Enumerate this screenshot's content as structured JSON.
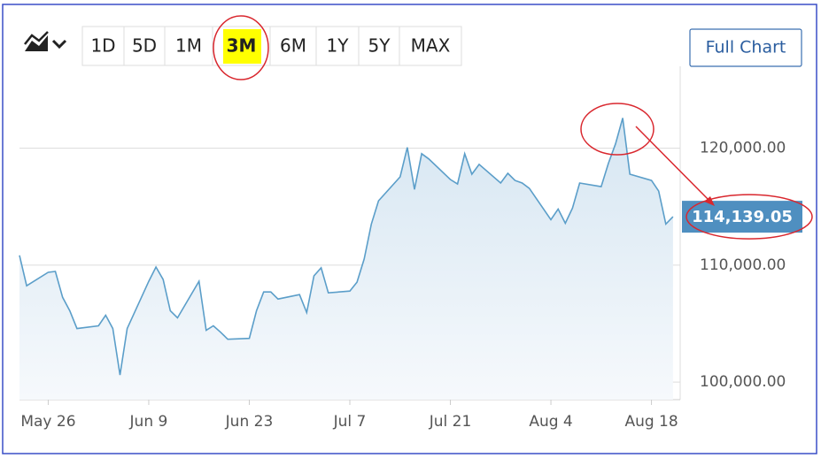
{
  "toolbar": {
    "ranges": [
      "1D",
      "5D",
      "1M",
      "3M",
      "6M",
      "1Y",
      "5Y",
      "MAX"
    ],
    "full_chart": "Full Chart"
  },
  "chart_data": {
    "type": "area",
    "color": "#5b9ec9",
    "x": [
      "May 22",
      "May 23",
      "May 26",
      "May 27",
      "May 28",
      "May 29",
      "May 30",
      "Jun 2",
      "Jun 3",
      "Jun 4",
      "Jun 5",
      "Jun 6",
      "Jun 9",
      "Jun 10",
      "Jun 11",
      "Jun 12",
      "Jun 13",
      "Jun 16",
      "Jun 17",
      "Jun 18",
      "Jun 19",
      "Jun 20",
      "Jun 23",
      "Jun 24",
      "Jun 25",
      "Jun 26",
      "Jun 27",
      "Jun 30",
      "Jul 1",
      "Jul 2",
      "Jul 3",
      "Jul 4",
      "Jul 7",
      "Jul 8",
      "Jul 9",
      "Jul 10",
      "Jul 11",
      "Jul 14",
      "Jul 15",
      "Jul 16",
      "Jul 17",
      "Jul 18",
      "Jul 21",
      "Jul 22",
      "Jul 23",
      "Jul 24",
      "Jul 25",
      "Jul 28",
      "Jul 29",
      "Jul 30",
      "Jul 31",
      "Aug 1",
      "Aug 4",
      "Aug 5",
      "Aug 6",
      "Aug 7",
      "Aug 8",
      "Aug 11",
      "Aug 12",
      "Aug 13",
      "Aug 14",
      "Aug 15",
      "Aug 18",
      "Aug 19",
      "Aug 20",
      "Aug 21"
    ],
    "values": [
      110835,
      108240,
      109385,
      109460,
      107250,
      106100,
      104580,
      104810,
      105720,
      104580,
      100610,
      104580,
      108620,
      109840,
      108770,
      106100,
      105490,
      108620,
      104430,
      104810,
      104270,
      103660,
      103740,
      106100,
      107710,
      107710,
      107100,
      107480,
      105950,
      109080,
      109770,
      107630,
      107780,
      108550,
      110530,
      113510,
      115500,
      117550,
      120070,
      116480,
      119530,
      119080,
      117320,
      116940,
      119530,
      117780,
      118620,
      117020,
      117850,
      117240,
      117020,
      116560,
      113890,
      114800,
      113580,
      114880,
      117020,
      116710,
      118690,
      120370,
      122580,
      117780,
      117240,
      116330,
      113510,
      114139.05
    ],
    "last_price": {
      "value": 114139.05,
      "label": "114,139.05"
    },
    "xlim": [
      "May 22",
      "Aug 22"
    ],
    "xticks": [
      "May 26",
      "Jun 9",
      "Jun 23",
      "Jul 7",
      "Jul 21",
      "Aug 4",
      "Aug 18"
    ],
    "ylim": [
      98500,
      127000
    ],
    "yticks": [
      {
        "value": 100000,
        "label": "100,000.00"
      },
      {
        "value": 110000,
        "label": "110,000.00"
      },
      {
        "value": 120000,
        "label": "120,000.00"
      }
    ],
    "grid": true
  }
}
